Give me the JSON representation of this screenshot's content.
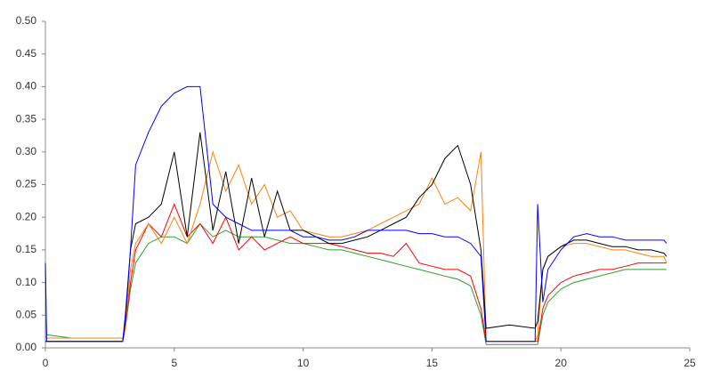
{
  "chart_data": {
    "type": "line",
    "x": [
      0,
      0.05,
      1,
      2,
      3,
      3.1,
      3.3,
      3.5,
      4,
      4.5,
      5,
      5.5,
      6,
      6.5,
      7,
      7.5,
      8,
      8.5,
      9,
      9.5,
      10,
      10.5,
      11,
      11.5,
      12,
      12.5,
      13,
      13.5,
      14,
      14.5,
      15,
      15.5,
      16,
      16.5,
      16.9,
      17.1,
      18,
      19,
      19.1,
      19.3,
      19.5,
      20,
      20.5,
      21,
      21.5,
      22,
      22.5,
      23,
      23.5,
      24,
      24.1
    ],
    "series": [
      {
        "color": "#2ca02c",
        "values": [
          0.13,
          0.02,
          0.015,
          0.015,
          0.015,
          0.03,
          0.09,
          0.13,
          0.16,
          0.17,
          0.17,
          0.16,
          0.19,
          0.17,
          0.18,
          0.17,
          0.17,
          0.17,
          0.165,
          0.16,
          0.16,
          0.155,
          0.15,
          0.15,
          0.145,
          0.14,
          0.135,
          0.13,
          0.125,
          0.12,
          0.115,
          0.11,
          0.105,
          0.095,
          0.05,
          0.005,
          0.005,
          0.005,
          0.005,
          0.05,
          0.07,
          0.09,
          0.1,
          0.105,
          0.11,
          0.115,
          0.12,
          0.12,
          0.12,
          0.12,
          0.12
        ]
      },
      {
        "color": "#ff0000",
        "values": [
          0.01,
          0.01,
          0.01,
          0.01,
          0.01,
          0.03,
          0.1,
          0.15,
          0.19,
          0.17,
          0.22,
          0.17,
          0.19,
          0.16,
          0.2,
          0.15,
          0.17,
          0.15,
          0.16,
          0.17,
          0.16,
          0.16,
          0.16,
          0.155,
          0.15,
          0.145,
          0.145,
          0.14,
          0.16,
          0.13,
          0.125,
          0.12,
          0.12,
          0.11,
          0.06,
          0.01,
          0.01,
          0.01,
          0.01,
          0.06,
          0.08,
          0.1,
          0.11,
          0.115,
          0.12,
          0.12,
          0.125,
          0.13,
          0.13,
          0.13,
          0.13
        ]
      },
      {
        "color": "#ff7f0e",
        "values": [
          0.02,
          0.015,
          0.015,
          0.015,
          0.015,
          0.03,
          0.12,
          0.16,
          0.19,
          0.16,
          0.2,
          0.16,
          0.22,
          0.3,
          0.24,
          0.28,
          0.22,
          0.25,
          0.2,
          0.21,
          0.18,
          0.175,
          0.17,
          0.17,
          0.175,
          0.18,
          0.19,
          0.2,
          0.21,
          0.22,
          0.26,
          0.22,
          0.23,
          0.21,
          0.3,
          0.01,
          0.01,
          0.01,
          0.02,
          0.12,
          0.14,
          0.155,
          0.16,
          0.16,
          0.155,
          0.15,
          0.15,
          0.145,
          0.14,
          0.14,
          0.13
        ]
      },
      {
        "color": "#000000",
        "values": [
          0.01,
          0.01,
          0.01,
          0.01,
          0.01,
          0.04,
          0.15,
          0.19,
          0.2,
          0.22,
          0.3,
          0.17,
          0.33,
          0.18,
          0.27,
          0.16,
          0.26,
          0.17,
          0.24,
          0.18,
          0.18,
          0.17,
          0.16,
          0.16,
          0.165,
          0.17,
          0.18,
          0.19,
          0.2,
          0.23,
          0.25,
          0.29,
          0.31,
          0.25,
          0.15,
          0.03,
          0.035,
          0.03,
          0.04,
          0.12,
          0.14,
          0.155,
          0.165,
          0.165,
          0.16,
          0.155,
          0.155,
          0.15,
          0.15,
          0.145,
          0.14
        ]
      },
      {
        "color": "#0000ff",
        "values": [
          0.13,
          0.01,
          0.01,
          0.01,
          0.01,
          0.05,
          0.15,
          0.28,
          0.33,
          0.37,
          0.39,
          0.4,
          0.4,
          0.22,
          0.2,
          0.19,
          0.18,
          0.18,
          0.18,
          0.18,
          0.17,
          0.17,
          0.165,
          0.165,
          0.17,
          0.18,
          0.18,
          0.18,
          0.18,
          0.175,
          0.175,
          0.17,
          0.17,
          0.16,
          0.14,
          0.01,
          0.01,
          0.01,
          0.22,
          0.07,
          0.12,
          0.15,
          0.17,
          0.175,
          0.17,
          0.17,
          0.165,
          0.165,
          0.165,
          0.165,
          0.16
        ]
      }
    ],
    "xlim": [
      0,
      25
    ],
    "xticks": [
      0,
      5,
      10,
      15,
      20,
      25
    ],
    "ylim": [
      0,
      0.5
    ],
    "yticks": [
      {
        "value": 0,
        "label": "0.00"
      },
      {
        "value": 0.05,
        "label": "0.05"
      },
      {
        "value": 0.1,
        "label": "0.10"
      },
      {
        "value": 0.15,
        "label": "0.15"
      },
      {
        "value": 0.2,
        "label": "0.20"
      },
      {
        "value": 0.25,
        "label": "0.25"
      },
      {
        "value": 0.3,
        "label": "0.30"
      },
      {
        "value": 0.35,
        "label": "0.35"
      },
      {
        "value": 0.4,
        "label": "0.40"
      },
      {
        "value": 0.45,
        "label": "0.45"
      },
      {
        "value": 0.5,
        "label": "0.50"
      }
    ],
    "grid": false
  }
}
